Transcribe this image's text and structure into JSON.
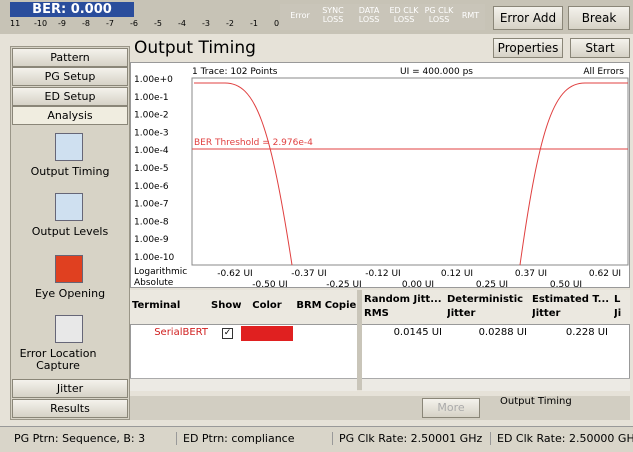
{
  "ber": {
    "label": "BER: 0.000",
    "scale": [
      "11",
      "-10",
      "-9",
      "-8",
      "-7",
      "-6",
      "-5",
      "-4",
      "-3",
      "-2",
      "-1",
      "0"
    ]
  },
  "indicators": [
    "Error",
    "SYNC LOSS",
    "DATA LOSS",
    "ED CLK LOSS",
    "PG CLK LOSS",
    "RMT"
  ],
  "buttons": {
    "error_add": "Error Add",
    "break": "Break",
    "properties": "Properties",
    "start": "Start",
    "more": "More"
  },
  "title": "Output Timing",
  "sidebar": {
    "top": [
      "Pattern",
      "PG Setup",
      "ED Setup",
      "Analysis"
    ],
    "tools": [
      "Output Timing",
      "Output Levels",
      "Eye Opening",
      "Error Location Capture"
    ],
    "bottom": [
      "Jitter",
      "Results"
    ]
  },
  "plot": {
    "info": "1 Trace: 102 Points",
    "ui": "UI = 400.000 ps",
    "mode": "All Errors",
    "y_labels": [
      "1.00e+0",
      "1.00e-1",
      "1.00e-2",
      "1.00e-3",
      "1.00e-4",
      "1.00e-5",
      "1.00e-6",
      "1.00e-7",
      "1.00e-8",
      "1.00e-9",
      "1.00e-10"
    ],
    "y_scale": [
      "Logarithmic",
      "Absolute"
    ],
    "x_labels_upper": [
      "-0.62 UI",
      "-0.37 UI",
      "-0.12 UI",
      "0.12 UI",
      "0.37 UI",
      "0.62 UI"
    ],
    "x_labels_lower": [
      "-0.50 UI",
      "-0.25 UI",
      "0.00 UI",
      "0.25 UI",
      "0.50 UI"
    ],
    "threshold": "BER Threshold = 2.976e-4"
  },
  "table": {
    "left_headers": [
      "Terminal",
      "Show",
      "Color",
      "BRM",
      "Copie"
    ],
    "right_headers": [
      "Random Jitt...\nRMS",
      "Deterministic\nJitter",
      "Estimated T...\nJitter",
      "L\nJi"
    ],
    "left_row": [
      "SerialBERT"
    ],
    "right_row": [
      "0.0145 UI",
      "0.0288 UI",
      "0.228 UI"
    ]
  },
  "results_label": "Output Timing",
  "status": [
    "PG Ptrn: Sequence, B: 3",
    "ED Ptrn: compliance",
    "PG Clk Rate: 2.50001 GHz",
    "ED Clk Rate: 2.50000 GHz"
  ]
}
